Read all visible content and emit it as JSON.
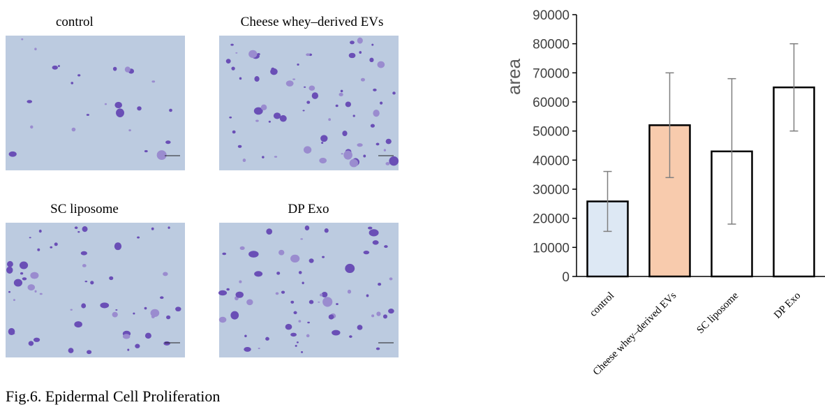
{
  "panels": [
    {
      "label": "control"
    },
    {
      "label": "Cheese whey–derived EVs"
    },
    {
      "label": "SC liposome"
    },
    {
      "label": "DP Exo"
    }
  ],
  "caption": "Fig.6. Epidermal Cell Proliferation",
  "chart_data": {
    "type": "bar",
    "y_label": "area",
    "categories": [
      "control",
      "Cheese whey–derived EVs",
      "SC liposome",
      "DP Exo"
    ],
    "values": [
      25800,
      52000,
      43000,
      65000
    ],
    "errors": [
      10300,
      18000,
      25000,
      15000
    ],
    "colors": [
      "#dde8f4",
      "#f8cbad",
      "#ffffff",
      "#ffffff"
    ],
    "ylim": [
      0,
      90000
    ],
    "yticks": [
      0,
      10000,
      20000,
      30000,
      40000,
      50000,
      60000,
      70000,
      80000,
      90000
    ],
    "grid": false
  }
}
